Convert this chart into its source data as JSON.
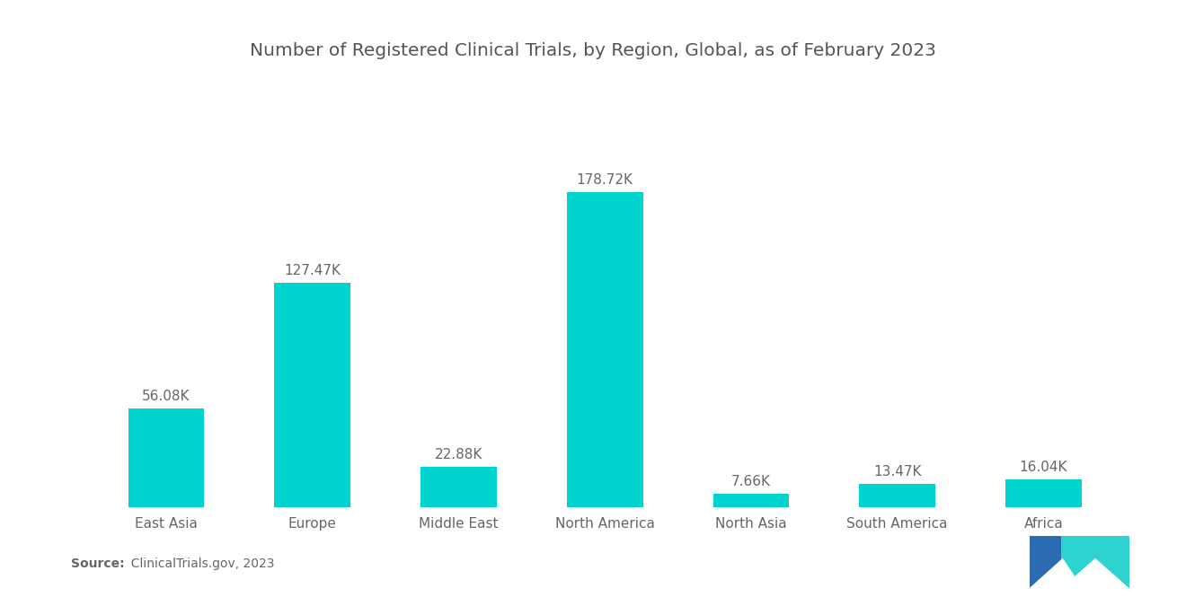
{
  "title": "Number of Registered Clinical Trials, by Region, Global, as of February 2023",
  "categories": [
    "East Asia",
    "Europe",
    "Middle East",
    "North America",
    "North Asia",
    "South America",
    "Africa"
  ],
  "values": [
    56.08,
    127.47,
    22.88,
    178.72,
    7.66,
    13.47,
    16.04
  ],
  "labels": [
    "56.08K",
    "127.47K",
    "22.88K",
    "178.72K",
    "7.66K",
    "13.47K",
    "16.04K"
  ],
  "bar_color": "#00D4CF",
  "background_color": "#ffffff",
  "title_color": "#555555",
  "label_color": "#666666",
  "tick_color": "#666666",
  "source_bold": "Source:",
  "source_normal": "  ClinicalTrials.gov, 2023",
  "ylim": [
    0,
    210
  ],
  "title_fontsize": 14.5,
  "label_fontsize": 11,
  "tick_fontsize": 11,
  "bar_width": 0.52,
  "logo_blue": "#2B6CB0",
  "logo_teal": "#2DD4CF"
}
